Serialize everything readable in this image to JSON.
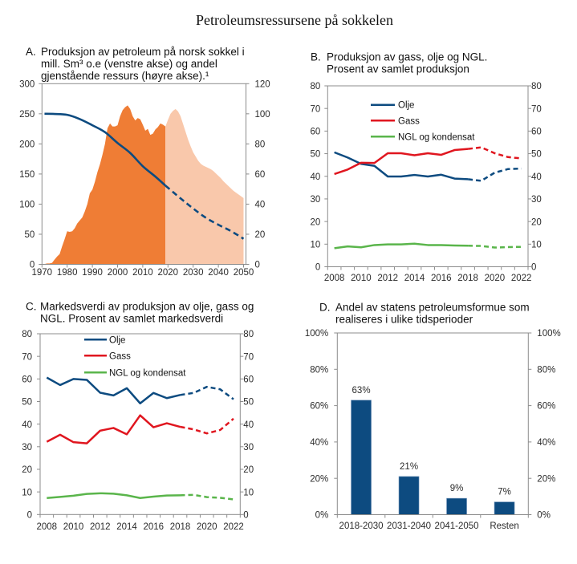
{
  "page": {
    "title": "Petroleumsressursene på sokkelen"
  },
  "chart_data": [
    {
      "id": "A",
      "letter": "A.",
      "type": "area",
      "title_lines": [
        "Produksjon av petroleum på norsk sokkel i",
        "mill. Sm³ o.e (venstre akse) og andel",
        "gjenstående ressurs (høyre akse).¹"
      ],
      "xlabel": "",
      "ylabel": "",
      "grid": false,
      "legend": null,
      "x": {
        "min": 1970,
        "max": 2050,
        "ticks": [
          1970,
          1980,
          1990,
          2000,
          2010,
          2020,
          2030,
          2040,
          2050
        ],
        "tick_labels": [
          "1970",
          "1980",
          "1990",
          "2000",
          "2010",
          "2020",
          "2030",
          "2040",
          "2050"
        ]
      },
      "y_left": {
        "min": 0,
        "max": 300,
        "ticks": [
          0,
          50,
          100,
          150,
          200,
          250,
          300
        ],
        "tick_labels": [
          "0",
          "50",
          "100",
          "150",
          "200",
          "250",
          "300"
        ]
      },
      "y_right": {
        "min": 0,
        "max": 120,
        "ticks": [
          0,
          20,
          40,
          60,
          80,
          100,
          120
        ],
        "tick_labels": [
          "0",
          "20",
          "40",
          "60",
          "80",
          "100",
          "120"
        ]
      },
      "series": [
        {
          "key": "production_historical",
          "type": "area",
          "axis": "left",
          "color": "#ef7d35",
          "x": [
            1971,
            1972,
            1973,
            1974,
            1975,
            1976,
            1977,
            1978,
            1979,
            1980,
            1981,
            1982,
            1983,
            1984,
            1985,
            1986,
            1987,
            1988,
            1989,
            1990,
            1991,
            1992,
            1993,
            1994,
            1995,
            1996,
            1997,
            1998,
            1999,
            2000,
            2001,
            2002,
            2003,
            2004,
            2005,
            2006,
            2007,
            2008,
            2009,
            2010,
            2011,
            2012,
            2013,
            2014,
            2015,
            2016,
            2017,
            2018,
            2019
          ],
          "y": [
            0.5,
            1.5,
            1.5,
            2.5,
            8,
            13,
            17,
            30,
            42,
            55,
            54,
            55,
            60,
            68,
            73,
            78,
            88,
            100,
            118,
            124,
            137,
            153,
            166,
            182,
            200,
            226,
            234,
            229,
            229,
            231,
            246,
            256,
            261,
            264,
            258,
            246,
            239,
            243,
            241,
            232,
            222,
            225,
            215,
            217,
            224,
            228,
            234,
            232,
            229
          ]
        },
        {
          "key": "production_projection",
          "type": "area",
          "axis": "left",
          "color": "#f9c8ab",
          "x": [
            2019,
            2020,
            2021,
            2022,
            2023,
            2024,
            2025,
            2026,
            2027,
            2028,
            2029,
            2030,
            2031,
            2032,
            2033,
            2034,
            2035,
            2036,
            2037,
            2038,
            2039,
            2040,
            2041,
            2042,
            2043,
            2044,
            2045,
            2046,
            2047,
            2048,
            2049,
            2050
          ],
          "y": [
            229,
            240,
            250,
            255,
            258,
            254,
            246,
            233,
            220,
            207,
            196,
            186,
            179,
            172,
            167,
            164,
            162,
            160,
            158,
            155,
            151,
            147,
            143,
            138,
            134,
            130,
            126,
            122,
            119,
            116,
            113,
            110
          ]
        },
        {
          "key": "remaining_resource_share_historical",
          "type": "line",
          "axis": "right",
          "dashed": false,
          "color": "#0d4b80",
          "x": [
            1971,
            1975,
            1980,
            1985,
            1990,
            1995,
            2000,
            2005,
            2010,
            2015,
            2019
          ],
          "y": [
            100,
            99.9,
            99.3,
            96.5,
            92.4,
            87.8,
            80.6,
            74,
            65.2,
            58.3,
            52.3
          ]
        },
        {
          "key": "remaining_resource_share_projection",
          "type": "line",
          "axis": "right",
          "dashed": true,
          "color": "#0d4b80",
          "x": [
            2019,
            2025,
            2030,
            2035,
            2040,
            2045,
            2050
          ],
          "y": [
            52.3,
            43.8,
            37.1,
            31,
            26.3,
            22.1,
            17
          ]
        }
      ]
    },
    {
      "id": "B",
      "letter": "B.",
      "type": "line",
      "title_lines": [
        "Produksjon av gass, olje og NGL.",
        "Prosent av samlet produksjon"
      ],
      "xlabel": "",
      "ylabel": "",
      "grid": false,
      "categories": [
        "2008",
        "2009",
        "2010",
        "2011",
        "2012",
        "2013",
        "2014",
        "2015",
        "2016",
        "2017",
        "2018",
        "2019",
        "2020",
        "2021",
        "2022"
      ],
      "x_tick_labels": [
        "2008",
        "2010",
        "2012",
        "2014",
        "2016",
        "2018",
        "2020",
        "2022"
      ],
      "projection_from": "2018",
      "y_left": {
        "min": 0,
        "max": 80,
        "ticks": [
          0,
          10,
          20,
          30,
          40,
          50,
          60,
          70,
          80
        ],
        "tick_labels": [
          "0",
          "10",
          "20",
          "30",
          "40",
          "50",
          "60",
          "70",
          "80"
        ]
      },
      "y_right": {
        "min": 0,
        "max": 80,
        "ticks": [
          0,
          10,
          20,
          30,
          40,
          50,
          60,
          70,
          80
        ],
        "tick_labels": [
          "0",
          "10",
          "20",
          "30",
          "40",
          "50",
          "60",
          "70",
          "80"
        ]
      },
      "legend": {
        "position": "top-left",
        "entries": [
          "Olje",
          "Gass",
          "NGL og kondensat"
        ]
      },
      "series": [
        {
          "name": "Olje",
          "color": "#0d4b80",
          "values": [
            50.6,
            48.3,
            45.5,
            44.6,
            39.9,
            39.9,
            40.6,
            39.9,
            40.7,
            39.0,
            38.7,
            38.0,
            41.6,
            43.2,
            43.4
          ]
        },
        {
          "name": "Gass",
          "color": "#e0161f",
          "values": [
            41.0,
            43.0,
            46.0,
            45.9,
            50.2,
            50.2,
            49.3,
            50.2,
            49.5,
            51.6,
            52.1,
            52.8,
            50.2,
            48.5,
            47.9
          ]
        },
        {
          "name": "NGL og kondensat",
          "color": "#5ab54b",
          "values": [
            8.2,
            9.0,
            8.6,
            9.6,
            9.9,
            9.9,
            10.2,
            9.6,
            9.6,
            9.4,
            9.3,
            9.2,
            8.5,
            8.7,
            8.8
          ]
        }
      ]
    },
    {
      "id": "C",
      "letter": "C.",
      "type": "line",
      "title_lines": [
        "Markedsverdi av produksjon av olje, gass og",
        "NGL. Prosent av samlet markedsverdi"
      ],
      "xlabel": "",
      "ylabel": "",
      "grid": false,
      "categories": [
        "2008",
        "2009",
        "2010",
        "2011",
        "2012",
        "2013",
        "2014",
        "2015",
        "2016",
        "2017",
        "2018",
        "2019",
        "2020",
        "2021",
        "2022"
      ],
      "x_tick_labels": [
        "2008",
        "2010",
        "2012",
        "2014",
        "2016",
        "2018",
        "2020",
        "2022"
      ],
      "projection_from": "2018",
      "y_left": {
        "min": 0,
        "max": 80,
        "ticks": [
          0,
          10,
          20,
          30,
          40,
          50,
          60,
          70,
          80
        ],
        "tick_labels": [
          "0",
          "10",
          "20",
          "30",
          "40",
          "50",
          "60",
          "70",
          "80"
        ]
      },
      "y_right": {
        "min": 0,
        "max": 80,
        "ticks": [
          0,
          10,
          20,
          30,
          40,
          50,
          60,
          70,
          80
        ],
        "tick_labels": [
          "0",
          "10",
          "20",
          "30",
          "40",
          "50",
          "60",
          "70",
          "80"
        ]
      },
      "legend": {
        "position": "top-left",
        "entries": [
          "Olje",
          "Gass",
          "NGL og kondensat"
        ]
      },
      "series": [
        {
          "name": "Olje",
          "color": "#0d4b80",
          "values": [
            60.6,
            57.3,
            60.0,
            59.6,
            53.9,
            52.7,
            55.9,
            49.2,
            53.8,
            51.5,
            52.9,
            53.8,
            56.5,
            55.4,
            51.0
          ]
        },
        {
          "name": "Gass",
          "color": "#e0161f",
          "values": [
            32.2,
            35.3,
            32.0,
            31.5,
            37.1,
            38.3,
            35.5,
            43.9,
            38.6,
            40.4,
            38.8,
            37.7,
            35.9,
            37.4,
            42.4
          ]
        },
        {
          "name": "NGL og kondensat",
          "color": "#5ab54b",
          "values": [
            7.3,
            7.8,
            8.3,
            9.1,
            9.4,
            9.2,
            8.5,
            7.3,
            7.9,
            8.4,
            8.5,
            8.7,
            7.7,
            7.4,
            6.7
          ]
        }
      ]
    },
    {
      "id": "D",
      "letter": "D.",
      "type": "bar",
      "title_lines": [
        "Andel av statens petroleumsformue som",
        "realiseres i ulike tidsperioder"
      ],
      "xlabel": "",
      "ylabel": "",
      "grid": false,
      "legend": null,
      "categories": [
        "2018-2030",
        "2031-2040",
        "2041-2050",
        "Resten"
      ],
      "values": [
        63,
        21,
        9,
        7
      ],
      "data_labels": [
        "63%",
        "21%",
        "9%",
        "7%"
      ],
      "color": "#0d4b80",
      "y_left": {
        "min": 0,
        "max": 100,
        "ticks": [
          0,
          20,
          40,
          60,
          80,
          100
        ],
        "tick_labels": [
          "0%",
          "20%",
          "40%",
          "60%",
          "80%",
          "100%"
        ]
      },
      "y_right": {
        "min": 0,
        "max": 100,
        "ticks": [
          0,
          20,
          40,
          60,
          80,
          100
        ],
        "tick_labels": [
          "0%",
          "20%",
          "40%",
          "60%",
          "80%",
          "100%"
        ]
      }
    }
  ]
}
